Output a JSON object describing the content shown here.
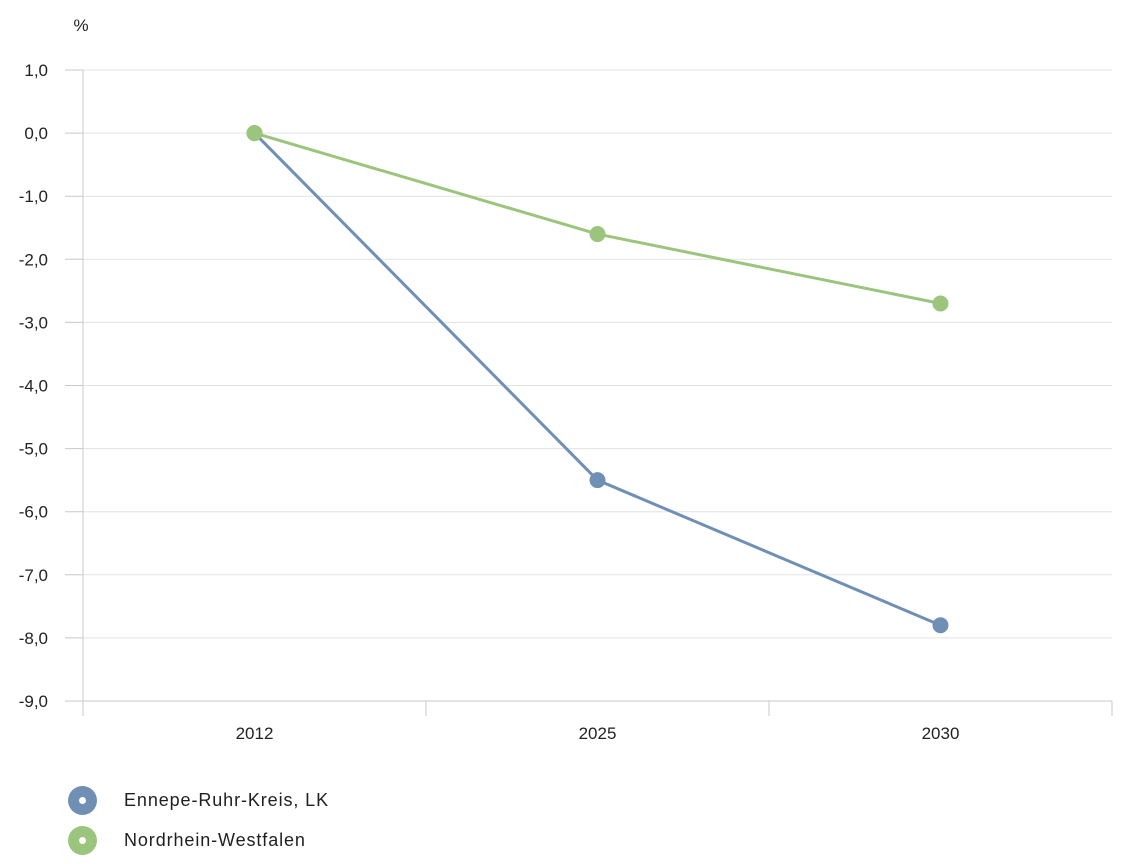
{
  "chart_data": {
    "type": "line",
    "title": "",
    "xlabel": "",
    "ylabel": "%",
    "x": [
      "2012",
      "2025",
      "2030"
    ],
    "ylim": [
      -9,
      1
    ],
    "yticks": [
      "1,0",
      "0,0",
      "-1,0",
      "-2,0",
      "-3,0",
      "-4,0",
      "-5,0",
      "-6,0",
      "-7,0",
      "-8,0",
      "-9,0"
    ],
    "grid": true,
    "legend_position": "bottom-left",
    "series": [
      {
        "name": "Ennepe-Ruhr-Kreis, LK",
        "color": "#6f8fb4",
        "values": [
          0.0,
          -5.5,
          -7.8
        ]
      },
      {
        "name": "Nordrhein-Westfalen",
        "color": "#9bc47c",
        "values": [
          0.0,
          -1.6,
          -2.7
        ]
      }
    ]
  }
}
